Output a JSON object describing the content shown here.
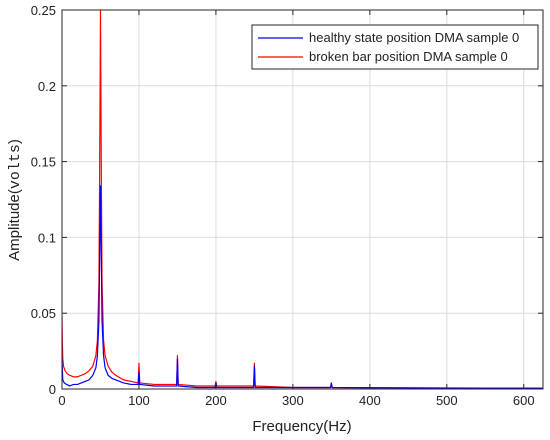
{
  "chart_data": {
    "type": "line",
    "title": "",
    "xlabel": "Frequency(Hz)",
    "ylabel_prefix": "Amplitude(",
    "ylabel_unit": "volts",
    "ylabel_suffix": ")",
    "xlim": [
      0,
      625
    ],
    "ylim": [
      0,
      0.25
    ],
    "xticks": [
      0,
      100,
      200,
      300,
      400,
      500,
      600
    ],
    "yticks": [
      0,
      0.05,
      0.1,
      0.15,
      0.2,
      0.25
    ],
    "ytick_labels": [
      "0",
      "0.05",
      "0.1",
      "0.15",
      "0.2",
      "0.25"
    ],
    "grid": true,
    "legend_position": "top-right",
    "series": [
      {
        "name": "healthy state position DMA sample 0",
        "color": "#0000ff",
        "points": [
          [
            0,
            0.02
          ],
          [
            1,
            0.006
          ],
          [
            3,
            0.004
          ],
          [
            6,
            0.003
          ],
          [
            10,
            0.002
          ],
          [
            15,
            0.003
          ],
          [
            20,
            0.003
          ],
          [
            25,
            0.004
          ],
          [
            30,
            0.005
          ],
          [
            35,
            0.006
          ],
          [
            40,
            0.009
          ],
          [
            44,
            0.014
          ],
          [
            46,
            0.022
          ],
          [
            48,
            0.045
          ],
          [
            49,
            0.09
          ],
          [
            50,
            0.134
          ],
          [
            51,
            0.09
          ],
          [
            52,
            0.045
          ],
          [
            54,
            0.022
          ],
          [
            56,
            0.014
          ],
          [
            60,
            0.009
          ],
          [
            65,
            0.007
          ],
          [
            70,
            0.006
          ],
          [
            80,
            0.004
          ],
          [
            90,
            0.003
          ],
          [
            99,
            0.003
          ],
          [
            100,
            0.011
          ],
          [
            101,
            0.003
          ],
          [
            120,
            0.002
          ],
          [
            149,
            0.002
          ],
          [
            150,
            0.02
          ],
          [
            151,
            0.002
          ],
          [
            175,
            0.001
          ],
          [
            199,
            0.001
          ],
          [
            200,
            0.004
          ],
          [
            201,
            0.001
          ],
          [
            225,
            0.001
          ],
          [
            249,
            0.001
          ],
          [
            250,
            0.015
          ],
          [
            251,
            0.001
          ],
          [
            300,
            0.001
          ],
          [
            349,
            0.001
          ],
          [
            350,
            0.004
          ],
          [
            351,
            0.001
          ],
          [
            400,
            0.0008
          ],
          [
            450,
            0.0007
          ],
          [
            500,
            0.0006
          ],
          [
            550,
            0.0005
          ],
          [
            600,
            0.0005
          ],
          [
            625,
            0.0005
          ]
        ]
      },
      {
        "name": "broken bar position DMA sample 0",
        "color": "#ff0000",
        "points": [
          [
            0,
            0.048
          ],
          [
            0.5,
            0.03
          ],
          [
            1,
            0.02
          ],
          [
            2,
            0.015
          ],
          [
            4,
            0.012
          ],
          [
            7,
            0.01
          ],
          [
            10,
            0.009
          ],
          [
            15,
            0.008
          ],
          [
            20,
            0.008
          ],
          [
            25,
            0.009
          ],
          [
            30,
            0.01
          ],
          [
            35,
            0.012
          ],
          [
            40,
            0.015
          ],
          [
            44,
            0.022
          ],
          [
            46,
            0.032
          ],
          [
            48,
            0.07
          ],
          [
            49,
            0.15
          ],
          [
            50,
            0.25
          ],
          [
            51,
            0.15
          ],
          [
            52,
            0.07
          ],
          [
            54,
            0.032
          ],
          [
            56,
            0.022
          ],
          [
            60,
            0.015
          ],
          [
            65,
            0.011
          ],
          [
            70,
            0.009
          ],
          [
            80,
            0.006
          ],
          [
            90,
            0.005
          ],
          [
            99,
            0.004
          ],
          [
            100,
            0.017
          ],
          [
            101,
            0.004
          ],
          [
            120,
            0.003
          ],
          [
            149,
            0.003
          ],
          [
            150,
            0.022
          ],
          [
            151,
            0.003
          ],
          [
            175,
            0.002
          ],
          [
            199,
            0.002
          ],
          [
            200,
            0.005
          ],
          [
            201,
            0.002
          ],
          [
            225,
            0.002
          ],
          [
            249,
            0.002
          ],
          [
            250,
            0.017
          ],
          [
            251,
            0.002
          ],
          [
            300,
            0.001
          ],
          [
            349,
            0.001
          ],
          [
            350,
            0.004
          ],
          [
            351,
            0.001
          ],
          [
            400,
            0.0009
          ],
          [
            450,
            0.0008
          ],
          [
            500,
            0.0007
          ],
          [
            550,
            0.0006
          ],
          [
            600,
            0.0006
          ],
          [
            625,
            0.0006
          ]
        ]
      }
    ]
  }
}
